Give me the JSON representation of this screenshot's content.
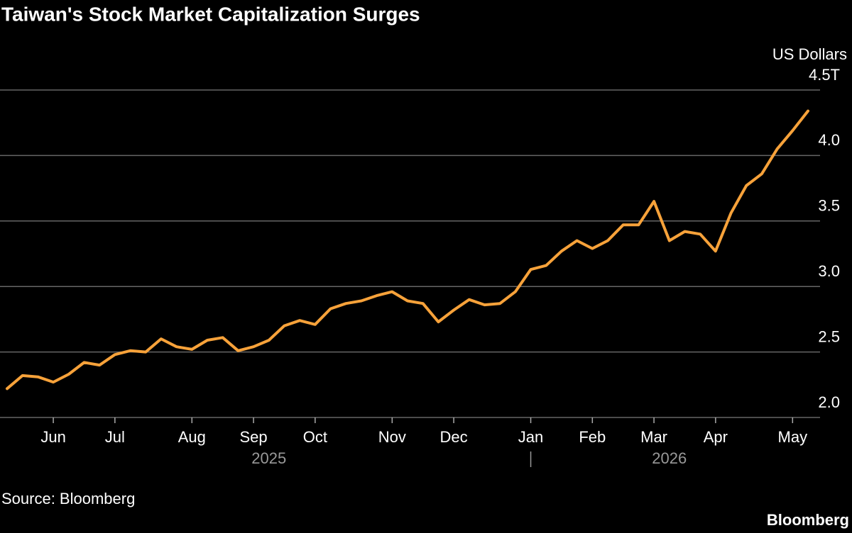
{
  "chart_data": {
    "type": "line",
    "title": "Taiwan's Stock Market Capitalization Surges",
    "y_label": "US Dollars",
    "source": "Source: Bloomberg",
    "brand": "Bloomberg",
    "categories": [
      null,
      null,
      null,
      "Jun",
      null,
      null,
      null,
      "Jul",
      null,
      null,
      null,
      null,
      "Aug",
      null,
      null,
      null,
      "Sep",
      null,
      null,
      null,
      "Oct",
      null,
      null,
      null,
      null,
      "Nov",
      null,
      null,
      null,
      "Dec",
      null,
      null,
      null,
      null,
      "Jan",
      null,
      null,
      null,
      "Feb",
      null,
      null,
      null,
      "Mar",
      null,
      null,
      null,
      "Apr",
      null,
      null,
      null,
      null,
      "May",
      null
    ],
    "years": [
      "2025",
      "2026"
    ],
    "series": [
      {
        "name": "Market capitalization",
        "color": "#f7a23a",
        "values": [
          2.22,
          2.32,
          2.31,
          2.27,
          2.33,
          2.42,
          2.4,
          2.48,
          2.51,
          2.5,
          2.6,
          2.54,
          2.52,
          2.59,
          2.61,
          2.51,
          2.54,
          2.59,
          2.7,
          2.74,
          2.71,
          2.83,
          2.87,
          2.89,
          2.93,
          2.96,
          2.89,
          2.87,
          2.73,
          2.82,
          2.9,
          2.86,
          2.87,
          2.96,
          3.13,
          3.16,
          3.27,
          3.35,
          3.29,
          3.35,
          3.47,
          3.47,
          3.65,
          3.35,
          3.42,
          3.4,
          3.27,
          3.56,
          3.77,
          3.86,
          4.05,
          4.19,
          4.34
        ]
      }
    ],
    "ylim": [
      2,
      4.5
    ],
    "yticks": [
      {
        "value": 2,
        "label": "2.0"
      },
      {
        "value": 2.5,
        "label": "2.5"
      },
      {
        "value": 3,
        "label": "3.0"
      },
      {
        "value": 3.5,
        "label": "3.5"
      },
      {
        "value": 4,
        "label": "4.0"
      },
      {
        "value": 4.5,
        "label": "4.5T"
      }
    ],
    "grid": true
  }
}
